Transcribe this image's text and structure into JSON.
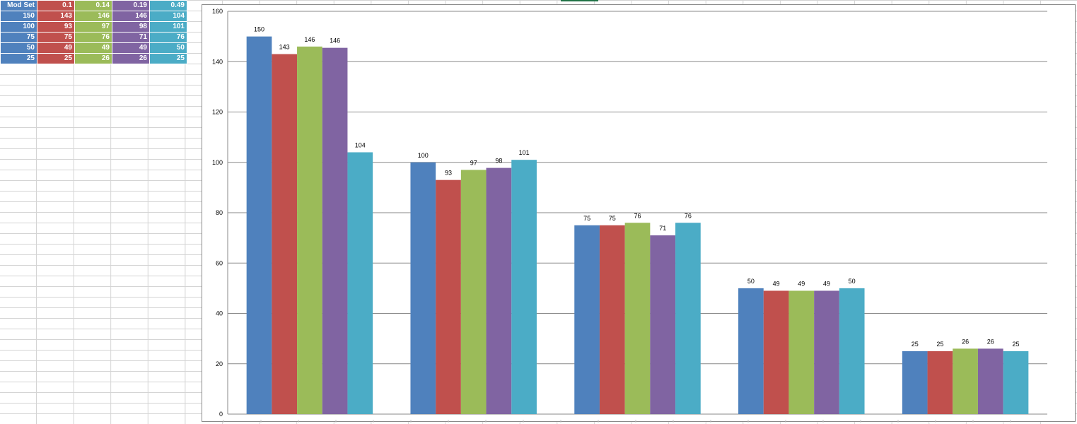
{
  "table": {
    "header": [
      "Mod Set",
      "0.1",
      "0.14",
      "0.19",
      "0.49"
    ],
    "rows": [
      [
        "150",
        "143",
        "146",
        "146",
        "104"
      ],
      [
        "100",
        "93",
        "97",
        "98",
        "101"
      ],
      [
        "75",
        "75",
        "76",
        "71",
        "76"
      ],
      [
        "50",
        "49",
        "49",
        "49",
        "50"
      ],
      [
        "25",
        "25",
        "26",
        "26",
        "25"
      ]
    ]
  },
  "colors": [
    "#4f81bd",
    "#c0504d",
    "#9bbb59",
    "#8064a2",
    "#4bacc6"
  ],
  "chart_data": {
    "type": "bar",
    "categories": [
      "",
      "",
      "",
      "",
      ""
    ],
    "series": [
      {
        "values": [
          150,
          100,
          75,
          50,
          25
        ],
        "labels": [
          "150",
          "100",
          "75",
          "50",
          "25"
        ]
      },
      {
        "values": [
          143,
          93,
          75,
          49,
          25
        ],
        "labels": [
          "143",
          "93",
          "75",
          "49",
          "25"
        ]
      },
      {
        "values": [
          146,
          97,
          76,
          49,
          26
        ],
        "labels": [
          "146",
          "97",
          "76",
          "49",
          "26"
        ]
      },
      {
        "values": [
          145.5,
          97.8,
          71,
          49,
          26
        ],
        "labels": [
          "146",
          "98",
          "71",
          "49",
          "26"
        ]
      },
      {
        "values": [
          104,
          101,
          76,
          50,
          25
        ],
        "labels": [
          "104",
          "101",
          "76",
          "50",
          "25"
        ]
      }
    ],
    "yticks": [
      "0",
      "20",
      "40",
      "60",
      "80",
      "100",
      "120",
      "140",
      "160"
    ],
    "ylim": [
      0,
      160
    ],
    "grid": true,
    "title": "",
    "xlabel": "",
    "ylabel": ""
  }
}
